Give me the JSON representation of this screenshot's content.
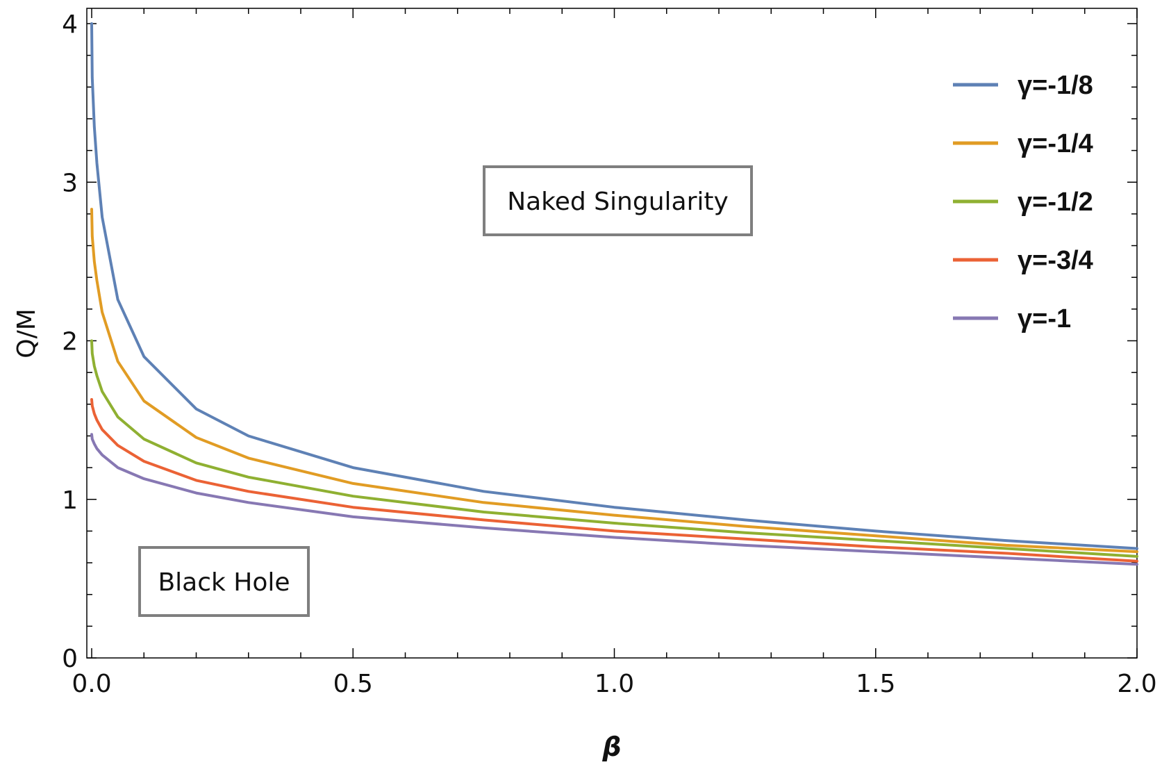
{
  "chart_data": {
    "type": "line",
    "title": "",
    "xlabel": "β",
    "ylabel": "Q/M",
    "xlim": [
      0,
      2
    ],
    "ylim": [
      0,
      4.1
    ],
    "x_ticks": [
      "0.0",
      "0.5",
      "1.0",
      "1.5",
      "2.0"
    ],
    "y_ticks": [
      "0",
      "1",
      "2",
      "3",
      "4"
    ],
    "grid": false,
    "legend_position": "top-right",
    "x": [
      0.0,
      0.001,
      0.005,
      0.01,
      0.02,
      0.05,
      0.1,
      0.2,
      0.3,
      0.5,
      0.75,
      1.0,
      1.25,
      1.5,
      1.75,
      2.0
    ],
    "series": [
      {
        "name": "γ=-1/8",
        "color": "#5E81B5",
        "values": [
          4.0,
          3.66,
          3.35,
          3.12,
          2.78,
          2.26,
          1.9,
          1.57,
          1.4,
          1.2,
          1.05,
          0.95,
          0.87,
          0.8,
          0.74,
          0.69
        ]
      },
      {
        "name": "γ=-1/4",
        "color": "#E19C24",
        "values": [
          2.83,
          2.66,
          2.5,
          2.38,
          2.18,
          1.87,
          1.62,
          1.39,
          1.26,
          1.1,
          0.98,
          0.9,
          0.83,
          0.77,
          0.71,
          0.67
        ]
      },
      {
        "name": "γ=-1/2",
        "color": "#8FB032",
        "values": [
          2.0,
          1.92,
          1.84,
          1.78,
          1.68,
          1.52,
          1.38,
          1.23,
          1.14,
          1.02,
          0.92,
          0.85,
          0.79,
          0.74,
          0.69,
          0.64
        ]
      },
      {
        "name": "γ=-3/4",
        "color": "#EB6235",
        "values": [
          1.63,
          1.59,
          1.54,
          1.5,
          1.44,
          1.34,
          1.24,
          1.12,
          1.05,
          0.95,
          0.87,
          0.8,
          0.75,
          0.7,
          0.66,
          0.61
        ]
      },
      {
        "name": "γ=-1",
        "color": "#8778B3",
        "values": [
          1.41,
          1.38,
          1.35,
          1.32,
          1.28,
          1.2,
          1.13,
          1.04,
          0.98,
          0.89,
          0.82,
          0.76,
          0.71,
          0.67,
          0.63,
          0.59
        ]
      }
    ],
    "annotations": [
      "Naked Singularity",
      "Black Hole"
    ]
  }
}
